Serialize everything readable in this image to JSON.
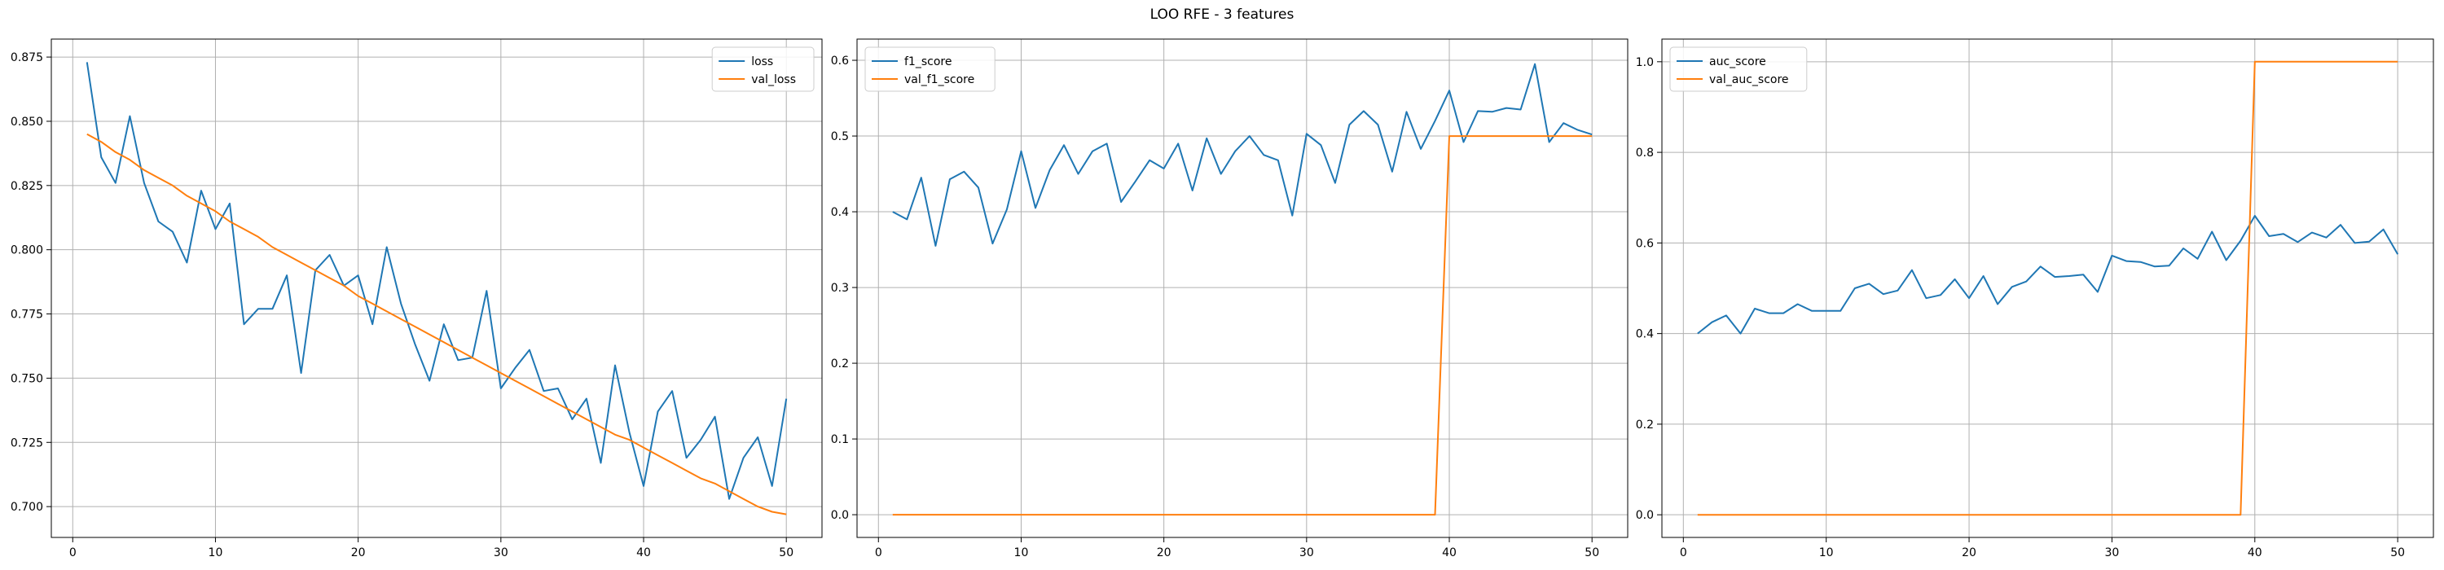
{
  "figure_title": "LOO RFE - 3 features",
  "chart_data": [
    {
      "type": "line",
      "xlim": [
        -1.5,
        52.5
      ],
      "ylim": [
        0.688,
        0.882
      ],
      "x_ticks": [
        0,
        10,
        20,
        30,
        40,
        50
      ],
      "y_ticks": [
        0.7,
        0.725,
        0.75,
        0.775,
        0.8,
        0.825,
        0.85,
        0.875
      ],
      "y_tick_labels": [
        "0.700",
        "0.725",
        "0.750",
        "0.775",
        "0.800",
        "0.825",
        "0.850",
        "0.875"
      ],
      "grid": true,
      "legend": "upper right",
      "x": [
        1,
        2,
        3,
        4,
        5,
        6,
        7,
        8,
        9,
        10,
        11,
        12,
        13,
        14,
        15,
        16,
        17,
        18,
        19,
        20,
        21,
        22,
        23,
        24,
        25,
        26,
        27,
        28,
        29,
        30,
        31,
        32,
        33,
        34,
        35,
        36,
        37,
        38,
        39,
        40,
        41,
        42,
        43,
        44,
        45,
        46,
        47,
        48,
        49,
        50
      ],
      "series": [
        {
          "name": "loss",
          "color": "#1f77b4",
          "values": [
            0.873,
            0.836,
            0.826,
            0.852,
            0.826,
            0.811,
            0.807,
            0.795,
            0.823,
            0.808,
            0.818,
            0.771,
            0.777,
            0.777,
            0.79,
            0.752,
            0.792,
            0.798,
            0.786,
            0.79,
            0.771,
            0.801,
            0.779,
            0.763,
            0.749,
            0.771,
            0.757,
            0.758,
            0.784,
            0.746,
            0.754,
            0.761,
            0.745,
            0.746,
            0.734,
            0.742,
            0.717,
            0.755,
            0.729,
            0.708,
            0.737,
            0.745,
            0.719,
            0.726,
            0.735,
            0.703,
            0.719,
            0.727,
            0.708,
            0.742
          ]
        },
        {
          "name": "val_loss",
          "color": "#ff7f0e",
          "values": [
            0.845,
            0.842,
            0.838,
            0.835,
            0.831,
            0.828,
            0.825,
            0.821,
            0.818,
            0.815,
            0.811,
            0.808,
            0.805,
            0.801,
            0.798,
            0.795,
            0.792,
            0.789,
            0.786,
            0.782,
            0.779,
            0.776,
            0.773,
            0.77,
            0.767,
            0.764,
            0.761,
            0.758,
            0.755,
            0.752,
            0.749,
            0.746,
            0.743,
            0.74,
            0.737,
            0.734,
            0.731,
            0.728,
            0.726,
            0.723,
            0.72,
            0.717,
            0.714,
            0.711,
            0.709,
            0.706,
            0.703,
            0.7,
            0.698,
            0.697
          ]
        }
      ]
    },
    {
      "type": "line",
      "xlim": [
        -1.5,
        52.5
      ],
      "ylim": [
        -0.03,
        0.628
      ],
      "x_ticks": [
        0,
        10,
        20,
        30,
        40,
        50
      ],
      "y_ticks": [
        0.0,
        0.1,
        0.2,
        0.3,
        0.4,
        0.5,
        0.6
      ],
      "y_tick_labels": [
        "0.0",
        "0.1",
        "0.2",
        "0.3",
        "0.4",
        "0.5",
        "0.6"
      ],
      "grid": true,
      "legend": "upper left",
      "x": [
        1,
        2,
        3,
        4,
        5,
        6,
        7,
        8,
        9,
        10,
        11,
        12,
        13,
        14,
        15,
        16,
        17,
        18,
        19,
        20,
        21,
        22,
        23,
        24,
        25,
        26,
        27,
        28,
        29,
        30,
        31,
        32,
        33,
        34,
        35,
        36,
        37,
        38,
        39,
        40,
        41,
        42,
        43,
        44,
        45,
        46,
        47,
        48,
        49,
        50
      ],
      "series": [
        {
          "name": "f1_score",
          "color": "#1f77b4",
          "values": [
            0.4,
            0.39,
            0.445,
            0.355,
            0.443,
            0.453,
            0.432,
            0.358,
            0.403,
            0.48,
            0.405,
            0.455,
            0.488,
            0.45,
            0.48,
            0.49,
            0.413,
            0.44,
            0.468,
            0.457,
            0.49,
            0.428,
            0.497,
            0.45,
            0.48,
            0.5,
            0.475,
            0.468,
            0.395,
            0.503,
            0.488,
            0.438,
            0.515,
            0.533,
            0.515,
            0.453,
            0.532,
            0.483,
            0.52,
            0.56,
            0.492,
            0.533,
            0.532,
            0.537,
            0.535,
            0.595,
            0.492,
            0.517,
            0.508,
            0.502
          ]
        },
        {
          "name": "val_f1_score",
          "color": "#ff7f0e",
          "values": [
            0,
            0,
            0,
            0,
            0,
            0,
            0,
            0,
            0,
            0,
            0,
            0,
            0,
            0,
            0,
            0,
            0,
            0,
            0,
            0,
            0,
            0,
            0,
            0,
            0,
            0,
            0,
            0,
            0,
            0,
            0,
            0,
            0,
            0,
            0,
            0,
            0,
            0,
            0,
            0.5,
            0.5,
            0.5,
            0.5,
            0.5,
            0.5,
            0.5,
            0.5,
            0.5,
            0.5,
            0.5
          ]
        }
      ]
    },
    {
      "type": "line",
      "xlim": [
        -1.5,
        52.5
      ],
      "ylim": [
        -0.05,
        1.05
      ],
      "x_ticks": [
        0,
        10,
        20,
        30,
        40,
        50
      ],
      "y_ticks": [
        0.0,
        0.2,
        0.4,
        0.6,
        0.8,
        1.0
      ],
      "y_tick_labels": [
        "0.0",
        "0.2",
        "0.4",
        "0.6",
        "0.8",
        "1.0"
      ],
      "grid": true,
      "legend": "upper left",
      "x": [
        1,
        2,
        3,
        4,
        5,
        6,
        7,
        8,
        9,
        10,
        11,
        12,
        13,
        14,
        15,
        16,
        17,
        18,
        19,
        20,
        21,
        22,
        23,
        24,
        25,
        26,
        27,
        28,
        29,
        30,
        31,
        32,
        33,
        34,
        35,
        36,
        37,
        38,
        39,
        40,
        41,
        42,
        43,
        44,
        45,
        46,
        47,
        48,
        49,
        50
      ],
      "series": [
        {
          "name": "auc_score",
          "color": "#1f77b4",
          "values": [
            0.4,
            0.425,
            0.44,
            0.4,
            0.455,
            0.445,
            0.445,
            0.465,
            0.45,
            0.45,
            0.45,
            0.5,
            0.51,
            0.487,
            0.495,
            0.54,
            0.478,
            0.485,
            0.52,
            0.478,
            0.527,
            0.465,
            0.503,
            0.515,
            0.548,
            0.525,
            0.527,
            0.53,
            0.492,
            0.572,
            0.56,
            0.558,
            0.548,
            0.55,
            0.588,
            0.565,
            0.625,
            0.562,
            0.605,
            0.66,
            0.615,
            0.62,
            0.602,
            0.623,
            0.612,
            0.64,
            0.6,
            0.603,
            0.63,
            0.575
          ]
        },
        {
          "name": "val_auc_score",
          "color": "#ff7f0e",
          "values": [
            0,
            0,
            0,
            0,
            0,
            0,
            0,
            0,
            0,
            0,
            0,
            0,
            0,
            0,
            0,
            0,
            0,
            0,
            0,
            0,
            0,
            0,
            0,
            0,
            0,
            0,
            0,
            0,
            0,
            0,
            0,
            0,
            0,
            0,
            0,
            0,
            0,
            0,
            0,
            1,
            1,
            1,
            1,
            1,
            1,
            1,
            1,
            1,
            1,
            1
          ]
        }
      ]
    }
  ]
}
